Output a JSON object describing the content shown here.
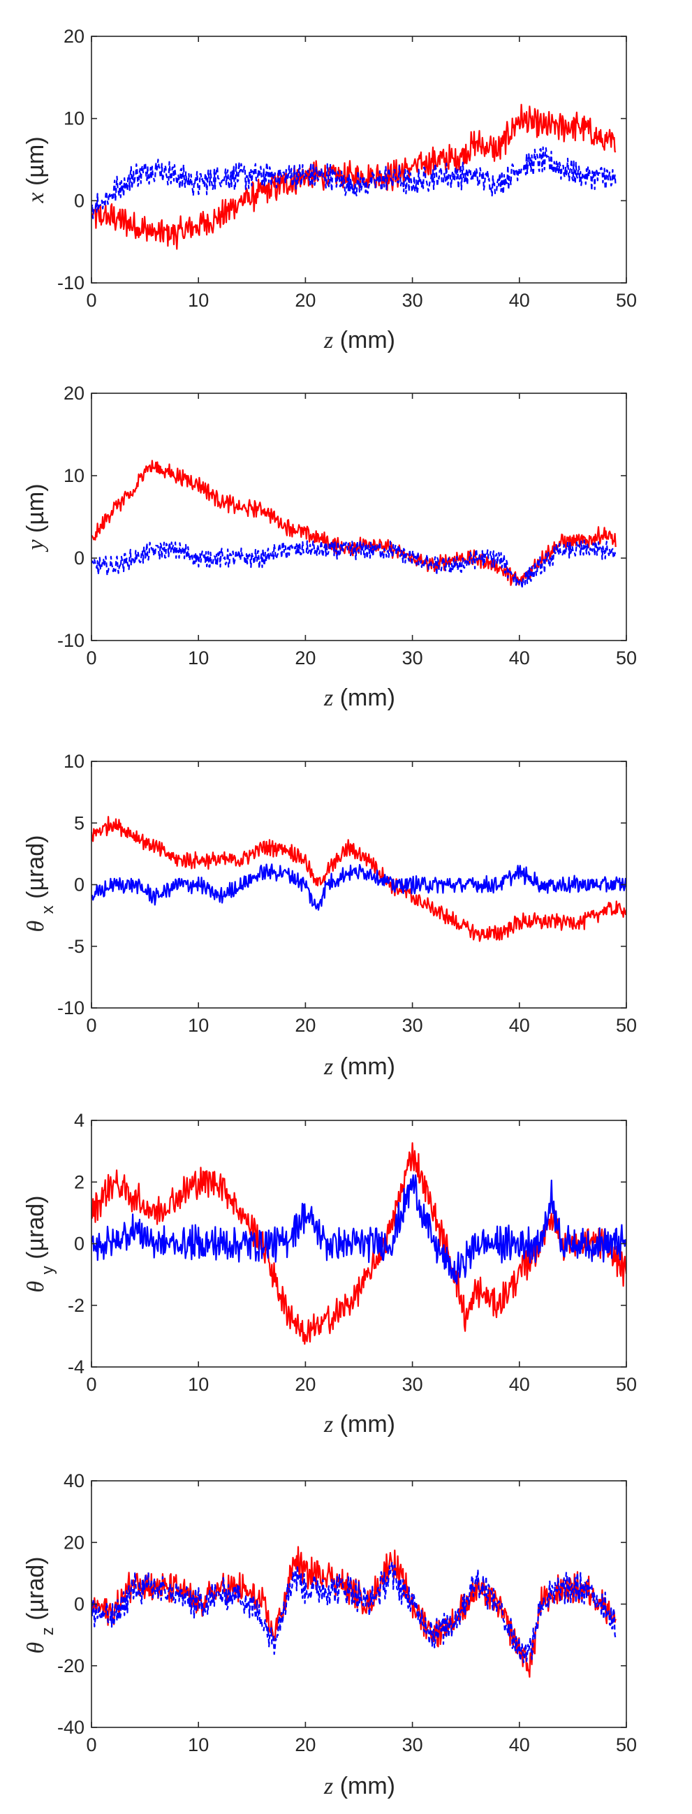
{
  "colors": {
    "red": "#ff0000",
    "blue": "#0000ff",
    "axis": "#262626"
  },
  "chart_data": [
    {
      "type": "line",
      "panel": "x",
      "ylabel": {
        "symbol": "x",
        "unit": "(µm)"
      },
      "xlabel": {
        "symbol": "z",
        "unit": "(mm)"
      },
      "xlim": [
        0,
        50
      ],
      "ylim": [
        -10,
        20
      ],
      "xticks": [
        "0",
        "10",
        "20",
        "30",
        "40",
        "50"
      ],
      "yticks": [
        "-10",
        "0",
        "10",
        "20"
      ],
      "noise": {
        "red": 1.6,
        "blue": 1.4
      },
      "series": [
        {
          "name": "red",
          "style": "solid",
          "color": "#ff0000",
          "x": [
            0,
            2,
            4,
            6,
            8,
            10,
            12,
            14,
            16,
            18,
            20,
            22,
            24,
            26,
            28,
            30,
            32,
            34,
            36,
            38,
            40,
            42,
            44,
            46,
            48,
            49
          ],
          "y": [
            -2,
            -2,
            -3,
            -4,
            -4,
            -3,
            -2,
            0,
            1,
            2,
            3,
            3,
            3,
            3,
            3,
            4,
            5,
            5,
            7,
            6,
            10,
            9,
            9,
            9,
            7,
            7
          ]
        },
        {
          "name": "blue",
          "style": "dashed",
          "color": "#0000ff",
          "x": [
            0,
            2,
            4,
            6,
            8,
            10,
            12,
            14,
            16,
            18,
            20,
            22,
            24,
            26,
            28,
            30,
            32,
            34,
            36,
            38,
            40,
            42,
            44,
            46,
            48,
            49
          ],
          "y": [
            -1,
            1,
            3,
            4,
            3,
            2,
            3,
            3,
            3,
            3,
            3,
            3,
            2,
            2,
            3,
            2,
            3,
            3,
            3,
            2,
            4,
            5,
            4,
            3,
            3,
            2
          ]
        }
      ]
    },
    {
      "type": "line",
      "panel": "y",
      "ylabel": {
        "symbol": "y",
        "unit": "(µm)"
      },
      "xlabel": {
        "symbol": "z",
        "unit": "(mm)"
      },
      "xlim": [
        0,
        50
      ],
      "ylim": [
        -10,
        20
      ],
      "xticks": [
        "0",
        "10",
        "20",
        "30",
        "40",
        "50"
      ],
      "yticks": [
        "-10",
        "0",
        "10",
        "20"
      ],
      "noise": {
        "red": 0.9,
        "blue": 1.0
      },
      "series": [
        {
          "name": "red",
          "style": "solid",
          "color": "#ff0000",
          "x": [
            0,
            2,
            4,
            5,
            6,
            8,
            10,
            12,
            14,
            16,
            18,
            20,
            22,
            24,
            26,
            28,
            30,
            32,
            34,
            36,
            38,
            40,
            42,
            44,
            46,
            48,
            49
          ],
          "y": [
            2,
            6,
            8,
            11,
            11,
            10,
            9,
            7,
            6,
            6,
            4,
            3,
            2,
            1,
            2,
            1,
            0,
            -1,
            0,
            0,
            -1,
            -3,
            0,
            2,
            2,
            3,
            2
          ]
        },
        {
          "name": "blue",
          "style": "dashed",
          "color": "#0000ff",
          "x": [
            0,
            2,
            4,
            6,
            8,
            10,
            12,
            14,
            16,
            18,
            20,
            22,
            24,
            26,
            28,
            30,
            32,
            34,
            36,
            38,
            40,
            42,
            44,
            46,
            48,
            49
          ],
          "y": [
            -1,
            -1,
            0,
            1,
            1,
            0,
            0,
            0,
            0,
            1,
            1,
            1,
            1,
            1,
            1,
            0,
            -1,
            -1,
            0,
            0,
            -3,
            -1,
            1,
            1,
            1,
            0
          ]
        }
      ]
    },
    {
      "type": "line",
      "panel": "theta_x",
      "ylabel": {
        "symbol": "θ",
        "sub": "x",
        "unit": "(µrad)"
      },
      "xlabel": {
        "symbol": "z",
        "unit": "(mm)"
      },
      "xlim": [
        0,
        50
      ],
      "ylim": [
        -10,
        10
      ],
      "xticks": [
        "0",
        "10",
        "20",
        "30",
        "40",
        "50"
      ],
      "yticks": [
        "-10",
        "-5",
        "0",
        "5",
        "10"
      ],
      "noise": {
        "red": 0.6,
        "blue": 0.6
      },
      "series": [
        {
          "name": "red",
          "style": "solid",
          "color": "#ff0000",
          "x": [
            0,
            2,
            4,
            6,
            8,
            10,
            12,
            14,
            16,
            18,
            20,
            21,
            22,
            24,
            26,
            28,
            30,
            32,
            34,
            36,
            38,
            40,
            42,
            44,
            46,
            48,
            50
          ],
          "y": [
            4,
            5,
            4,
            3,
            2,
            2,
            2,
            2,
            3,
            3,
            2,
            0,
            1,
            3,
            2,
            0,
            -1,
            -2,
            -3,
            -4,
            -4,
            -3,
            -3,
            -3,
            -3,
            -2,
            -2
          ]
        },
        {
          "name": "blue",
          "style": "solid",
          "color": "#0000ff",
          "x": [
            0,
            2,
            4,
            6,
            8,
            10,
            12,
            14,
            16,
            18,
            20,
            21,
            22,
            24,
            26,
            28,
            30,
            32,
            34,
            36,
            38,
            40,
            42,
            44,
            46,
            48,
            50
          ],
          "y": [
            -1,
            0,
            0,
            -1,
            0,
            0,
            -1,
            0,
            1,
            1,
            0,
            -2,
            0,
            1,
            1,
            0,
            0,
            0,
            0,
            0,
            0,
            1,
            0,
            0,
            0,
            0,
            0
          ]
        }
      ]
    },
    {
      "type": "line",
      "panel": "theta_y",
      "ylabel": {
        "symbol": "θ",
        "sub": "y",
        "unit": "(µrad)"
      },
      "xlabel": {
        "symbol": "z",
        "unit": "(mm)"
      },
      "xlim": [
        0,
        50
      ],
      "ylim": [
        -4,
        4
      ],
      "xticks": [
        "0",
        "10",
        "20",
        "30",
        "40",
        "50"
      ],
      "yticks": [
        "-4",
        "-2",
        "0",
        "2",
        "4"
      ],
      "noise": {
        "red": 0.45,
        "blue": 0.5
      },
      "series": [
        {
          "name": "red",
          "style": "solid",
          "color": "#ff0000",
          "x": [
            0,
            2,
            4,
            6,
            8,
            10,
            12,
            14,
            16,
            18,
            20,
            22,
            24,
            26,
            28,
            30,
            32,
            34,
            35,
            36,
            38,
            40,
            42,
            43,
            44,
            46,
            48,
            50
          ],
          "y": [
            1,
            2,
            1.5,
            1,
            1.5,
            2,
            2,
            1,
            0,
            -2,
            -3,
            -2.5,
            -2,
            -1,
            0.5,
            3,
            1,
            -1,
            -2.5,
            -1.5,
            -2,
            -1,
            0,
            1,
            0,
            0,
            0,
            -1
          ]
        },
        {
          "name": "blue",
          "style": "solid",
          "color": "#0000ff",
          "x": [
            0,
            2,
            4,
            6,
            8,
            10,
            12,
            14,
            16,
            18,
            20,
            22,
            24,
            26,
            28,
            30,
            32,
            34,
            35,
            36,
            38,
            40,
            42,
            43,
            44,
            46,
            48,
            50
          ],
          "y": [
            0,
            0,
            0.5,
            0,
            0,
            0,
            0,
            0,
            0,
            0,
            1,
            0,
            0,
            0,
            0,
            2,
            0,
            -1,
            -0.5,
            0,
            0,
            0,
            0,
            1.5,
            0,
            0,
            0,
            0
          ]
        }
      ]
    },
    {
      "type": "line",
      "panel": "theta_z",
      "ylabel": {
        "symbol": "θ",
        "sub": "z",
        "unit": "(µrad)"
      },
      "xlabel": {
        "symbol": "z",
        "unit": "(mm)"
      },
      "xlim": [
        0,
        50
      ],
      "ylim": [
        -40,
        40
      ],
      "xticks": [
        "0",
        "10",
        "20",
        "30",
        "40",
        "50"
      ],
      "yticks": [
        "-40",
        "-20",
        "0",
        "20",
        "40"
      ],
      "noise": {
        "red": 4.5,
        "blue": 4.5
      },
      "series": [
        {
          "name": "red",
          "style": "solid",
          "color": "#ff0000",
          "x": [
            0,
            2,
            4,
            6,
            8,
            10,
            12,
            14,
            16,
            17,
            18,
            19,
            20,
            22,
            24,
            26,
            28,
            30,
            32,
            34,
            36,
            38,
            40,
            41,
            42,
            44,
            46,
            48,
            49
          ],
          "y": [
            0,
            -3,
            8,
            5,
            5,
            0,
            5,
            5,
            0,
            -10,
            0,
            15,
            10,
            10,
            5,
            0,
            15,
            0,
            -10,
            -5,
            5,
            0,
            -15,
            -20,
            0,
            5,
            5,
            0,
            -5
          ]
        },
        {
          "name": "blue",
          "style": "dashed",
          "color": "#0000ff",
          "x": [
            0,
            2,
            4,
            6,
            8,
            10,
            12,
            14,
            16,
            17,
            18,
            19,
            20,
            22,
            24,
            26,
            28,
            30,
            32,
            34,
            36,
            38,
            40,
            41,
            42,
            44,
            46,
            48,
            49
          ],
          "y": [
            -2,
            -5,
            5,
            5,
            3,
            0,
            3,
            3,
            -5,
            -12,
            0,
            10,
            5,
            5,
            5,
            0,
            10,
            0,
            -10,
            -5,
            8,
            0,
            -15,
            -15,
            0,
            5,
            5,
            0,
            -8
          ]
        }
      ]
    }
  ]
}
